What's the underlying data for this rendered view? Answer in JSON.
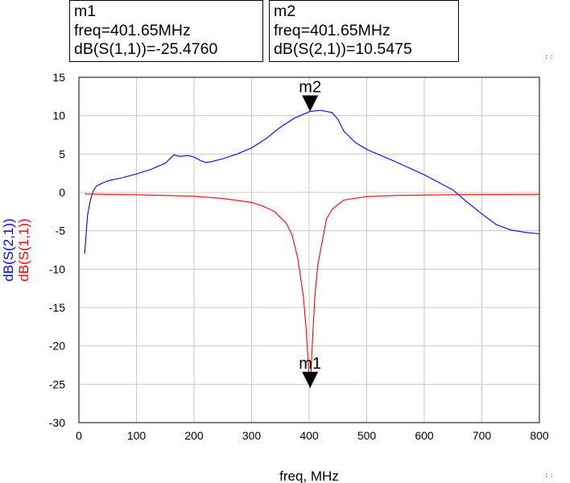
{
  "markers": [
    {
      "name": "m1",
      "freq_line": "freq=401.65MHz",
      "value_line": "dB(S(1,1))=-25.4760",
      "x": 401.65,
      "y": -25.476
    },
    {
      "name": "m2",
      "freq_line": "freq=401.65MHz",
      "value_line": "dB(S(2,1))=10.5475",
      "x": 401.65,
      "y": 10.5475
    }
  ],
  "colors": {
    "s21": "#0000ff",
    "s11": "#ff0000",
    "grid": "#c8c8c8",
    "axis": "#000000"
  },
  "chart_data": {
    "type": "line",
    "title": "",
    "xlabel": "freq, MHz",
    "ylabels": [
      "dB(S(2,1))",
      "dB(S(1,1))"
    ],
    "xlim": [
      0,
      800
    ],
    "ylim": [
      -30,
      15
    ],
    "grid": true,
    "x_ticks": [
      "0",
      "100",
      "200",
      "300",
      "400",
      "500",
      "600",
      "700",
      "800"
    ],
    "y_ticks": [
      "15",
      "10",
      "5",
      "0",
      "-5",
      "-10",
      "-15",
      "-20",
      "-25",
      "-30"
    ],
    "series": [
      {
        "name": "dB(S(2,1))",
        "color": "#0000ff",
        "points": [
          [
            10,
            -8
          ],
          [
            12,
            -6
          ],
          [
            15,
            -3
          ],
          [
            20,
            -1
          ],
          [
            25,
            0.2
          ],
          [
            30,
            0.8
          ],
          [
            40,
            1.2
          ],
          [
            50,
            1.5
          ],
          [
            75,
            1.9
          ],
          [
            100,
            2.4
          ],
          [
            125,
            3.0
          ],
          [
            150,
            3.8
          ],
          [
            165,
            4.9
          ],
          [
            175,
            4.7
          ],
          [
            190,
            4.8
          ],
          [
            200,
            4.6
          ],
          [
            210,
            4.2
          ],
          [
            220,
            3.9
          ],
          [
            230,
            4.0
          ],
          [
            250,
            4.4
          ],
          [
            275,
            5.0
          ],
          [
            300,
            5.8
          ],
          [
            325,
            7.0
          ],
          [
            350,
            8.5
          ],
          [
            375,
            9.7
          ],
          [
            400,
            10.5
          ],
          [
            401.65,
            10.5475
          ],
          [
            420,
            10.7
          ],
          [
            440,
            10.4
          ],
          [
            450,
            9.5
          ],
          [
            460,
            8.0
          ],
          [
            480,
            6.5
          ],
          [
            500,
            5.6
          ],
          [
            550,
            4.0
          ],
          [
            600,
            2.3
          ],
          [
            640,
            0.7
          ],
          [
            650,
            0.3
          ],
          [
            675,
            -1.3
          ],
          [
            700,
            -2.8
          ],
          [
            725,
            -4.2
          ],
          [
            750,
            -4.9
          ],
          [
            775,
            -5.2
          ],
          [
            800,
            -5.4
          ]
        ]
      },
      {
        "name": "dB(S(1,1))",
        "color": "#ff0000",
        "points": [
          [
            10,
            -0.2
          ],
          [
            50,
            -0.25
          ],
          [
            100,
            -0.3
          ],
          [
            150,
            -0.4
          ],
          [
            200,
            -0.5
          ],
          [
            250,
            -0.8
          ],
          [
            300,
            -1.3
          ],
          [
            320,
            -1.8
          ],
          [
            340,
            -2.5
          ],
          [
            360,
            -4.0
          ],
          [
            370,
            -5.5
          ],
          [
            380,
            -8.5
          ],
          [
            390,
            -13.5
          ],
          [
            395,
            -18
          ],
          [
            399,
            -23
          ],
          [
            401.65,
            -25.476
          ],
          [
            403,
            -24
          ],
          [
            406,
            -19
          ],
          [
            410,
            -13.5
          ],
          [
            415,
            -9.5
          ],
          [
            420,
            -7.5
          ],
          [
            425,
            -5.5
          ],
          [
            430,
            -3.5
          ],
          [
            440,
            -2.2
          ],
          [
            460,
            -1.0
          ],
          [
            500,
            -0.55
          ],
          [
            550,
            -0.4
          ],
          [
            600,
            -0.35
          ],
          [
            650,
            -0.3
          ],
          [
            700,
            -0.28
          ],
          [
            800,
            -0.25
          ]
        ]
      }
    ]
  }
}
